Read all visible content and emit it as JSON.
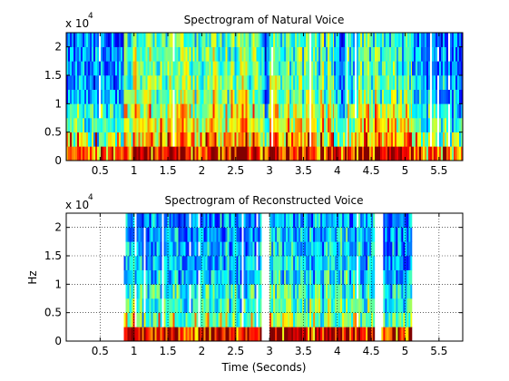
{
  "chart_data": [
    {
      "type": "heatmap",
      "title": "Spectrogram of Natural Voice",
      "xlabel": "",
      "ylabel": "",
      "y_multiplier": "x 10",
      "y_multiplier_exp": "4",
      "xlim": [
        0,
        5.85
      ],
      "ylim": [
        0,
        22500
      ],
      "x_ticks": [
        0.5,
        1,
        1.5,
        2,
        2.5,
        3,
        3.5,
        4,
        4.5,
        5,
        5.5
      ],
      "x_tick_labels": [
        "0.5",
        "1",
        "1.5",
        "2",
        "2.5",
        "3",
        "3.5",
        "4",
        "4.5",
        "5",
        "5.5"
      ],
      "y_ticks": [
        0,
        5000,
        10000,
        15000,
        20000
      ],
      "y_tick_labels": [
        "0",
        "0.5",
        "1",
        "1.5",
        "2"
      ],
      "grid": false,
      "colormap": "jet",
      "frequency_bands": 9,
      "segments": [
        {
          "t_start": 0.0,
          "t_end": 0.85,
          "low_band_level": 0.78,
          "mid_band_level": 0.42,
          "high_band_level": 0.22
        },
        {
          "t_start": 0.85,
          "t_end": 2.9,
          "low_band_level": 0.9,
          "mid_band_level": 0.62,
          "high_band_level": 0.45
        },
        {
          "t_start": 2.9,
          "t_end": 3.0,
          "low_band_level": 0.8,
          "mid_band_level": 0.38,
          "high_band_level": 0.2
        },
        {
          "t_start": 3.0,
          "t_end": 3.95,
          "low_band_level": 0.9,
          "mid_band_level": 0.6,
          "high_band_level": 0.42
        },
        {
          "t_start": 3.95,
          "t_end": 4.15,
          "low_band_level": 0.8,
          "mid_band_level": 0.4,
          "high_band_level": 0.22
        },
        {
          "t_start": 4.15,
          "t_end": 5.1,
          "low_band_level": 0.92,
          "mid_band_level": 0.6,
          "high_band_level": 0.4
        },
        {
          "t_start": 5.1,
          "t_end": 5.85,
          "low_band_level": 0.8,
          "mid_band_level": 0.4,
          "high_band_level": 0.22
        }
      ]
    },
    {
      "type": "heatmap",
      "title": "Spectrogram of Reconstructed Voice",
      "xlabel": "Time (Seconds)",
      "ylabel": "Hz",
      "y_multiplier": "x 10",
      "y_multiplier_exp": "4",
      "xlim": [
        0,
        5.85
      ],
      "ylim": [
        0,
        22500
      ],
      "x_ticks": [
        0.5,
        1,
        1.5,
        2,
        2.5,
        3,
        3.5,
        4,
        4.5,
        5,
        5.5
      ],
      "x_tick_labels": [
        "0.5",
        "1",
        "1.5",
        "2",
        "2.5",
        "3",
        "3.5",
        "4",
        "4.5",
        "5",
        "5.5"
      ],
      "y_ticks": [
        0,
        5000,
        10000,
        15000,
        20000
      ],
      "y_tick_labels": [
        "0",
        "0.5",
        "1",
        "1.5",
        "2"
      ],
      "grid": true,
      "colormap": "jet",
      "frequency_bands": 9,
      "segments": [
        {
          "t_start": 0.85,
          "t_end": 2.88,
          "low_band_level": 0.88,
          "mid_band_level": 0.4,
          "high_band_level": 0.25
        },
        {
          "t_start": 3.0,
          "t_end": 4.55,
          "low_band_level": 0.95,
          "mid_band_level": 0.42,
          "high_band_level": 0.28
        },
        {
          "t_start": 4.65,
          "t_end": 5.1,
          "low_band_level": 0.92,
          "mid_band_level": 0.4,
          "high_band_level": 0.25
        }
      ]
    }
  ]
}
